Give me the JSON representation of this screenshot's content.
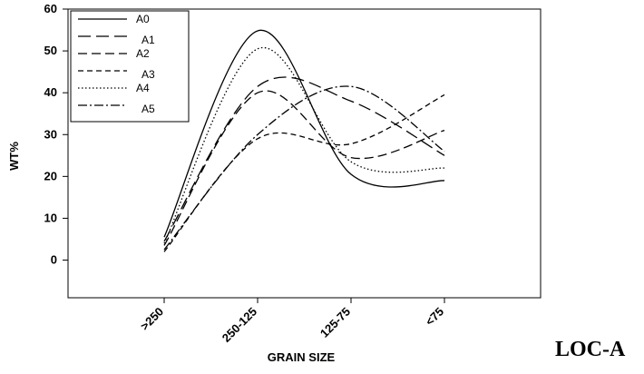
{
  "chart_data": {
    "type": "line",
    "title": "",
    "xlabel": "GRAIN SIZE",
    "ylabel": "WT%",
    "categories": [
      ">250",
      "250-125",
      "125-75",
      "<75"
    ],
    "ylim": [
      -9,
      60
    ],
    "yticks": [
      0,
      10,
      20,
      30,
      40,
      50,
      60
    ],
    "grid": false,
    "legend_position": "top-left",
    "series": [
      {
        "name": "A0",
        "values": [
          5.5,
          54.8,
          20.5,
          19.0
        ],
        "dash": ""
      },
      {
        "name": "A1",
        "values": [
          4.5,
          41.5,
          38.0,
          25.0
        ],
        "dash": "14 6"
      },
      {
        "name": "A2",
        "values": [
          3.5,
          40.0,
          24.5,
          31.0
        ],
        "dash": "10 5"
      },
      {
        "name": "A3",
        "values": [
          2.0,
          29.0,
          27.8,
          39.5
        ],
        "dash": "6 4"
      },
      {
        "name": "A4",
        "values": [
          4.0,
          50.5,
          23.5,
          22.0
        ],
        "dash": "1.5 2.5"
      },
      {
        "name": "A5",
        "values": [
          2.5,
          30.0,
          41.5,
          26.0
        ],
        "dash": "10 3 2 3"
      }
    ]
  },
  "corner_label": "LOC-A"
}
